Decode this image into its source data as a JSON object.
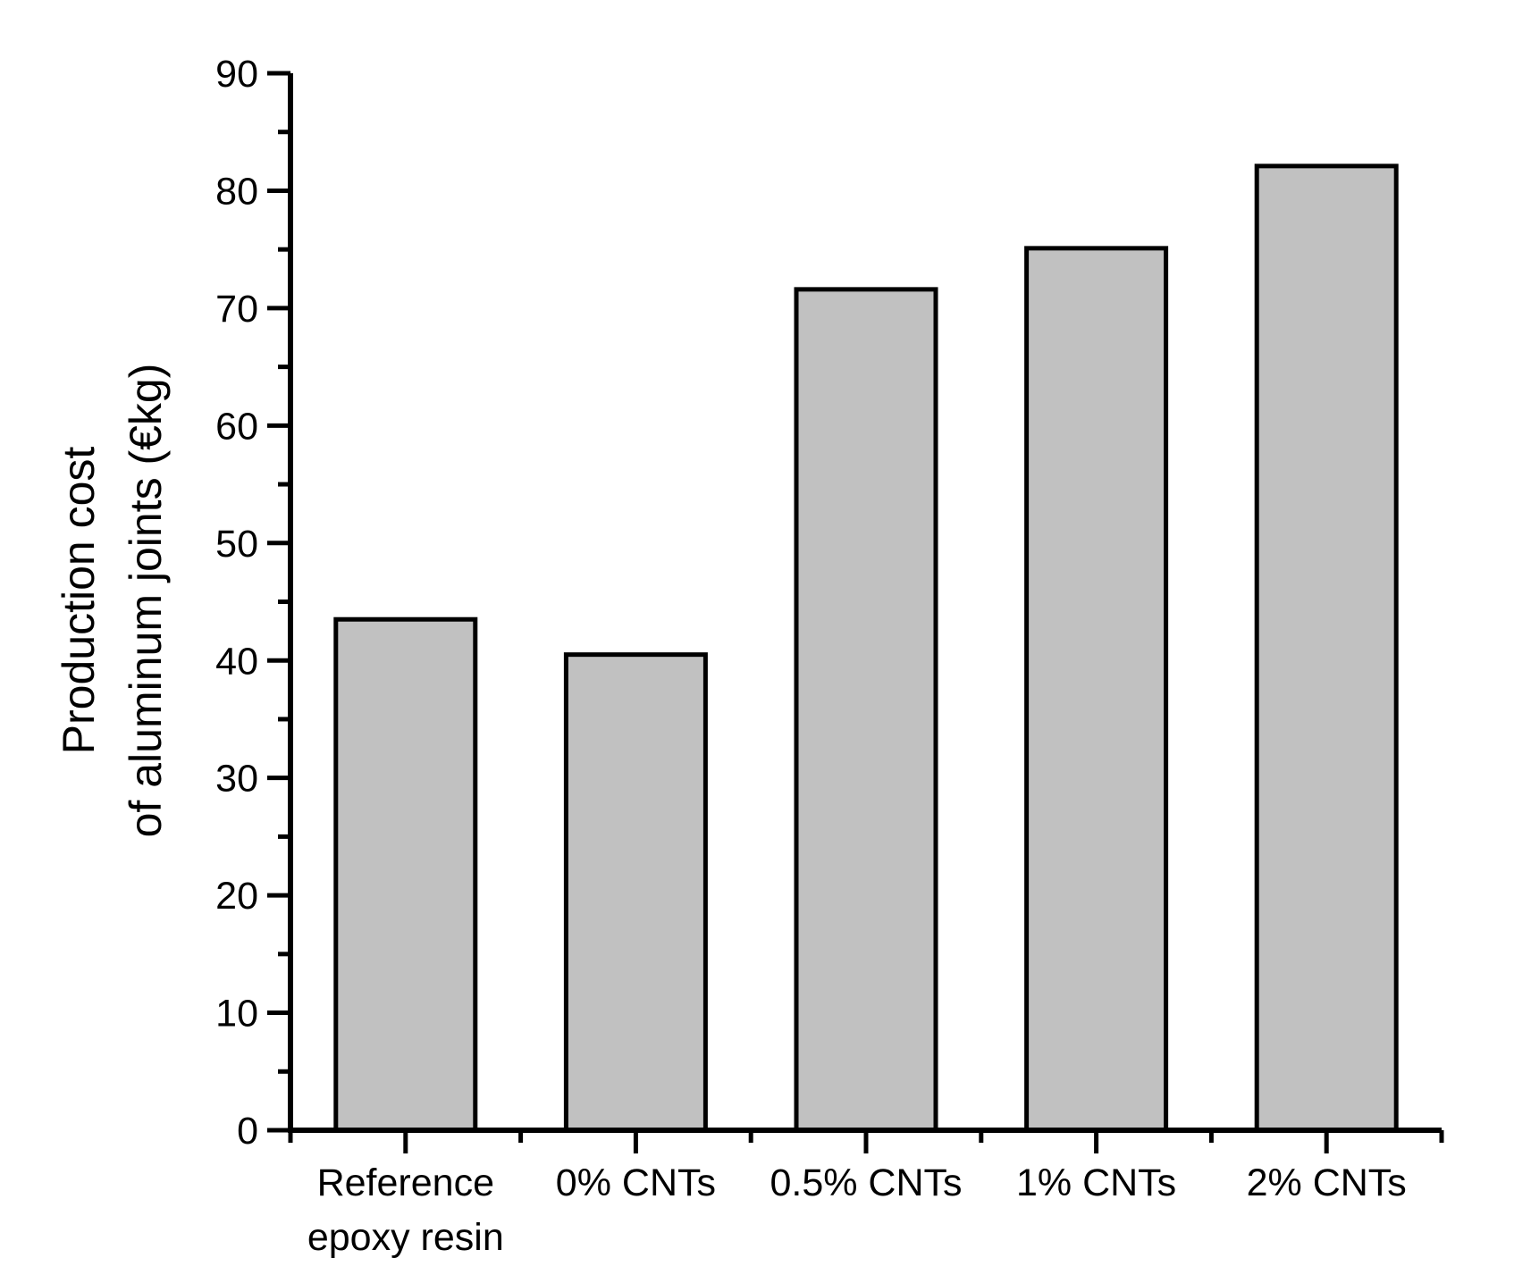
{
  "chart_data": {
    "type": "bar",
    "title": "",
    "xlabel": "",
    "ylabel": "Production cost of aluminum joints (€kg)",
    "ylabel_lines": [
      "Production cost",
      "of aluminum joints (€kg)"
    ],
    "categories": [
      "Reference epoxy resin",
      "0% CNTs",
      "0.5% CNTs",
      "1% CNTs",
      "2% CNTs"
    ],
    "category_label_lines": [
      [
        "Reference",
        "epoxy resin"
      ],
      [
        "0% CNTs"
      ],
      [
        "0.5% CNTs"
      ],
      [
        "1% CNTs"
      ],
      [
        "2% CNTs"
      ]
    ],
    "values": [
      43.5,
      40.5,
      71.6,
      75.1,
      82.1
    ],
    "ylim": [
      0,
      90
    ],
    "ytick_major_step": 10,
    "ytick_minor_step": 5,
    "ytick_labels": [
      "0",
      "10",
      "20",
      "30",
      "40",
      "50",
      "60",
      "70",
      "80",
      "90"
    ],
    "grid": false,
    "legend": null,
    "bar_single_series": true,
    "colors": {
      "bar_fill": "#c1c1c1",
      "bar_stroke": "#000000",
      "axis": "#000000",
      "text": "#000000",
      "background": "#ffffff"
    }
  }
}
